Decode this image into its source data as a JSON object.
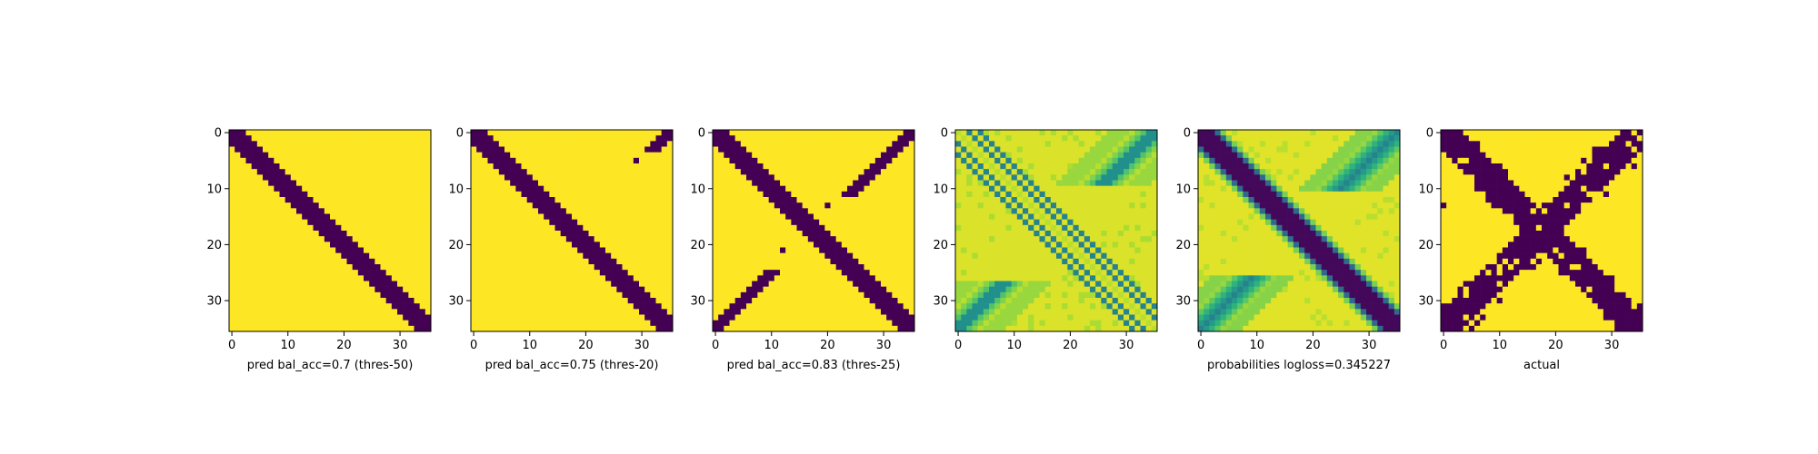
{
  "chart_data": [
    {
      "type": "heatmap",
      "grid_size": 36,
      "title": "",
      "xlabel": "pred bal_acc=0.7 (thres-50)",
      "ylabel": "",
      "xticks": [
        0,
        10,
        20,
        30
      ],
      "yticks": [
        0,
        10,
        20,
        30
      ],
      "colors": {
        "low": "#440154",
        "high": "#fde725"
      },
      "pattern": "diagonal band (dark) of width ~4 on yellow",
      "values_description": "binary"
    },
    {
      "type": "heatmap",
      "grid_size": 36,
      "title": "",
      "xlabel": "pred bal_acc=0.75 (thres-20)",
      "ylabel": "",
      "xticks": [
        0,
        10,
        20,
        30
      ],
      "yticks": [
        0,
        10,
        20,
        30
      ],
      "colors": {
        "low": "#440154",
        "high": "#fde725"
      },
      "pattern": "diagonal band plus small anti-diagonal fragments",
      "values_description": "binary"
    },
    {
      "type": "heatmap",
      "grid_size": 36,
      "title": "",
      "xlabel": "pred bal_acc=0.83 (thres-25)",
      "ylabel": "",
      "xticks": [
        0,
        10,
        20,
        30
      ],
      "yticks": [
        0,
        10,
        20,
        30
      ],
      "colors": {
        "low": "#440154",
        "high": "#fde725"
      },
      "pattern": "diagonal band plus anti-diagonal arms",
      "values_description": "binary"
    },
    {
      "type": "heatmap",
      "grid_size": 36,
      "title": "",
      "xlabel": "",
      "ylabel": "",
      "xticks": [
        0,
        10,
        20,
        30
      ],
      "yticks": [
        0,
        10,
        20,
        30
      ],
      "colors": {
        "low": "#440154",
        "high": "#fde725"
      },
      "pattern": "continuous probabilities: teal/green diagonal stripes and blurry anti-diagonal",
      "values_description": "continuous 0-1"
    },
    {
      "type": "heatmap",
      "grid_size": 36,
      "title": "",
      "xlabel": "probabilities logloss=0.345227",
      "ylabel": "",
      "xticks": [
        0,
        10,
        20,
        30
      ],
      "yticks": [
        0,
        10,
        20,
        30
      ],
      "colors": {
        "low": "#440154",
        "high": "#fde725"
      },
      "pattern": "continuous: dark diagonal, green anti-diagonal",
      "values_description": "continuous 0-1"
    },
    {
      "type": "heatmap",
      "grid_size": 36,
      "title": "",
      "xlabel": "actual",
      "ylabel": "",
      "xticks": [
        0,
        10,
        20,
        30
      ],
      "yticks": [
        0,
        10,
        20,
        30
      ],
      "colors": {
        "low": "#440154",
        "high": "#fde725"
      },
      "pattern": "binary: thick irregular X shape",
      "values_description": "binary"
    }
  ]
}
